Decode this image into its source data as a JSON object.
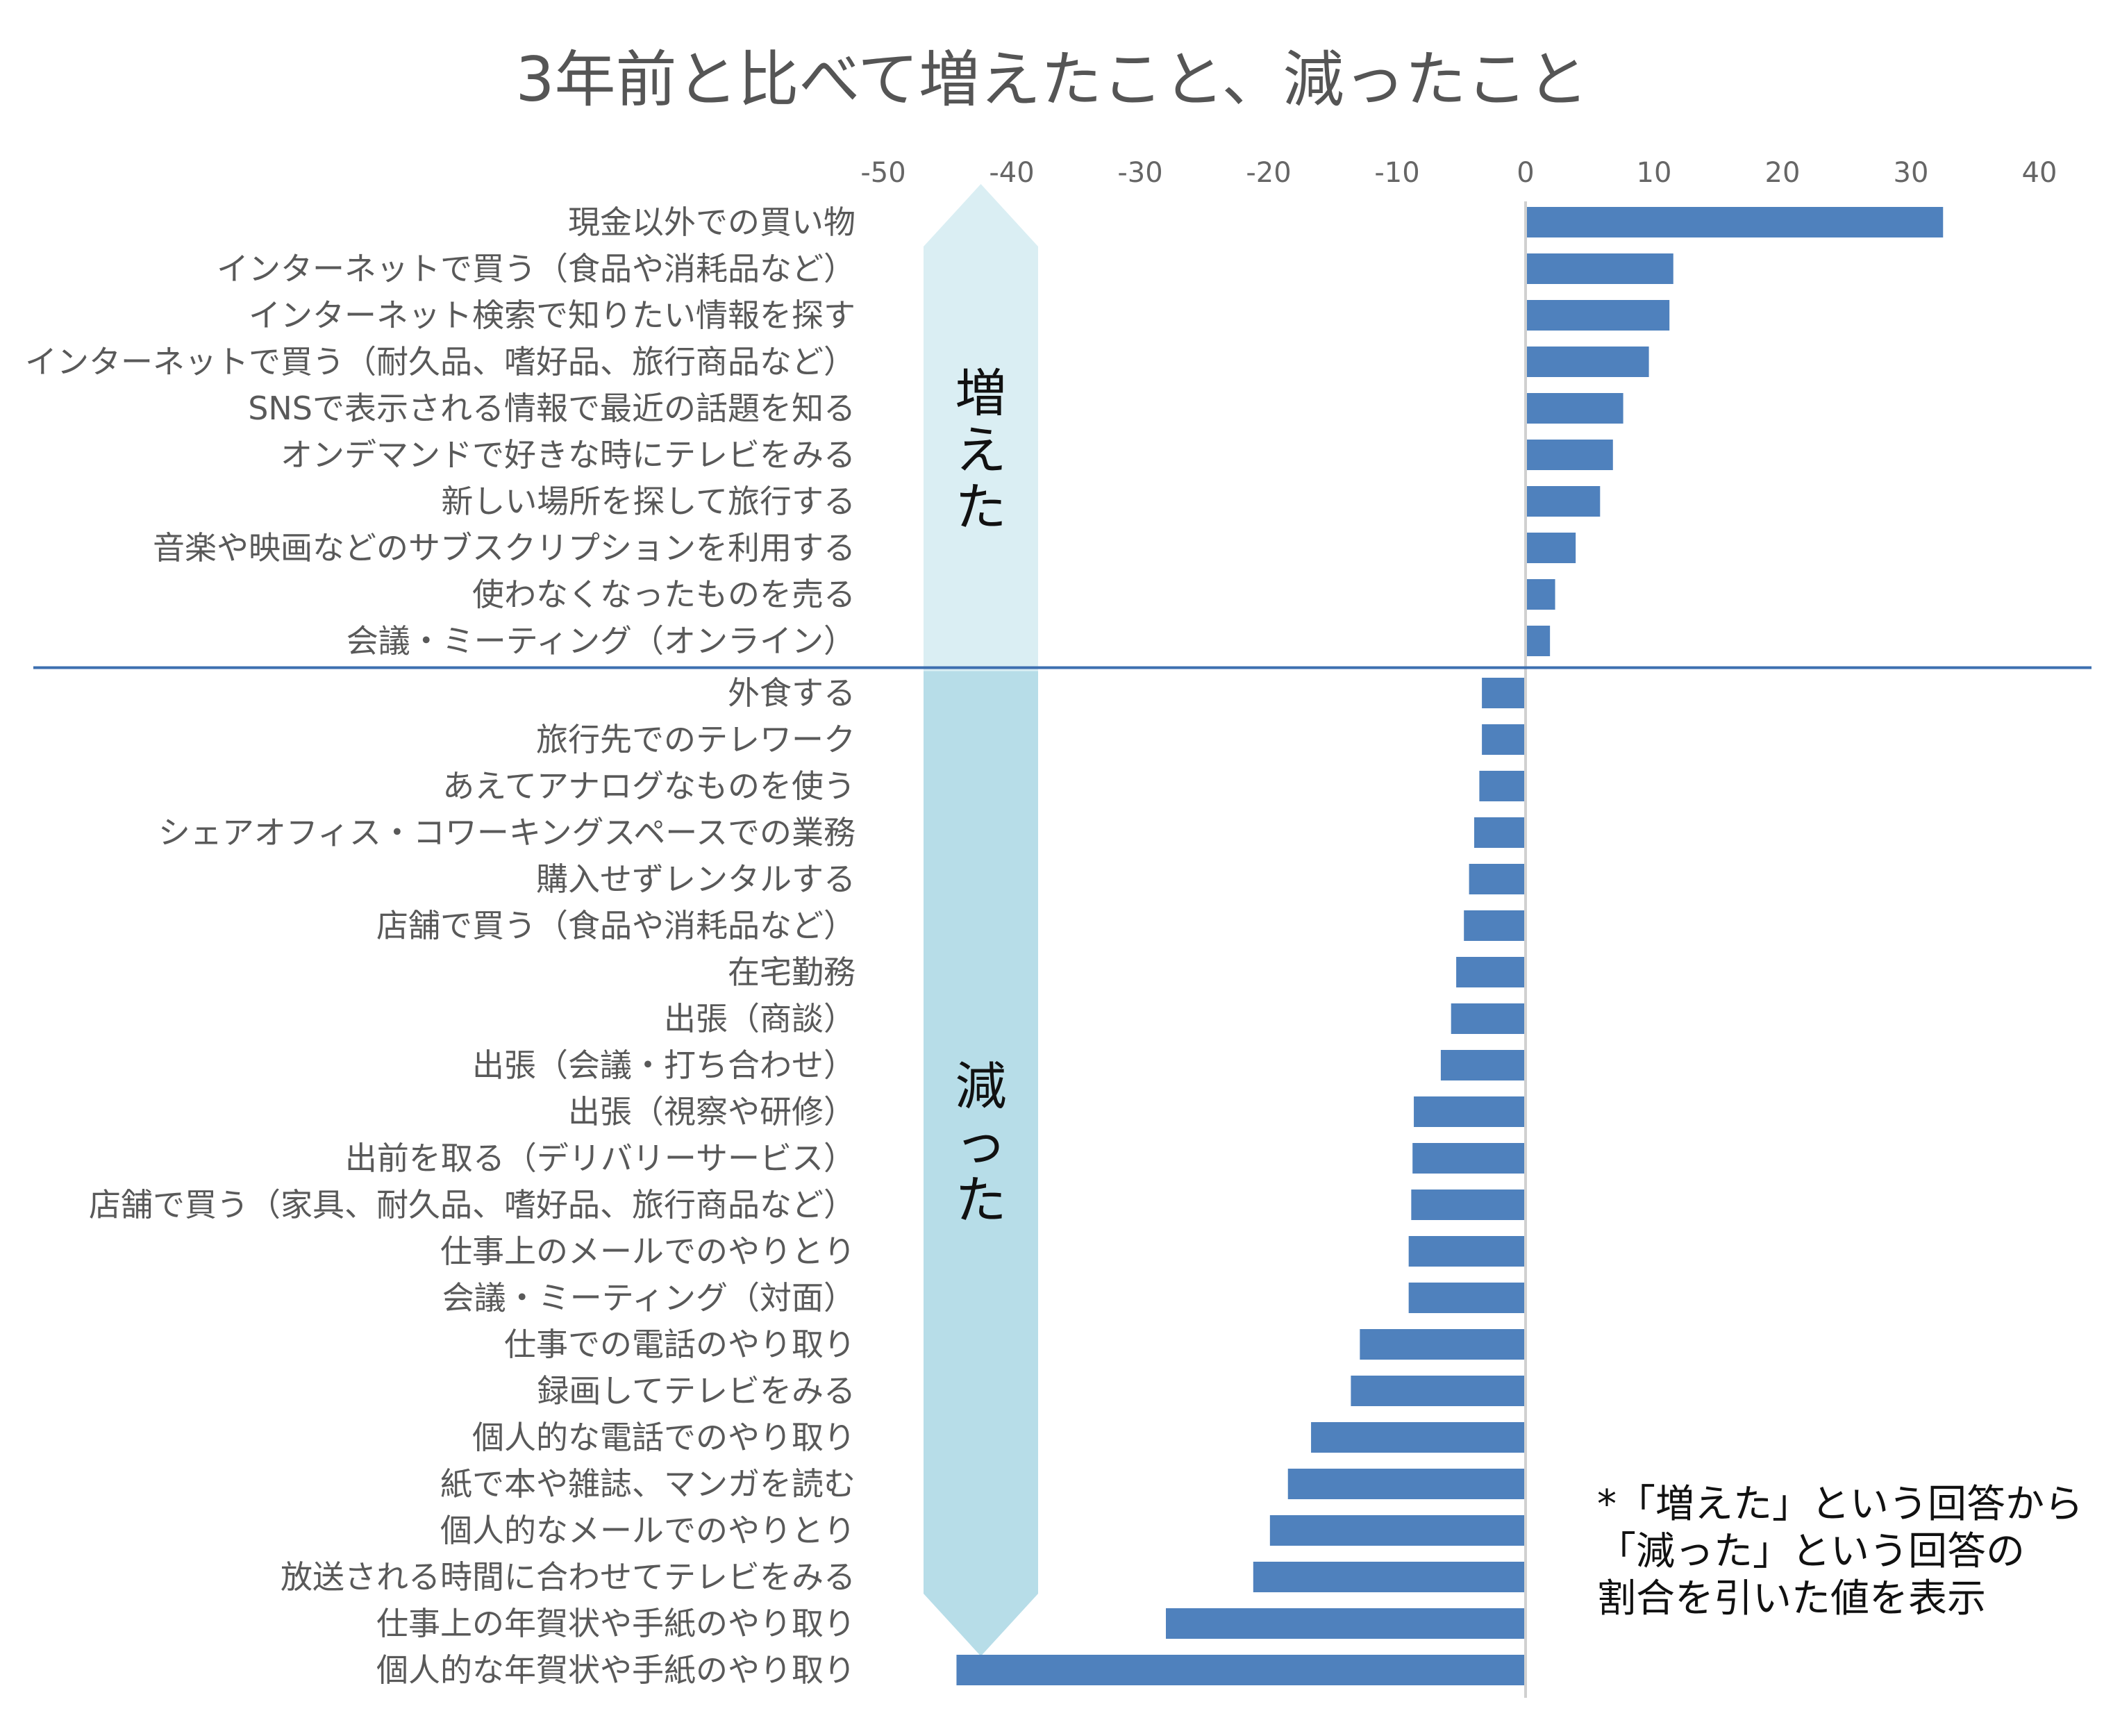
{
  "chart_data": {
    "type": "bar",
    "orientation": "horizontal",
    "title": "3年前と比べて増えたこと、減ったこと",
    "xlim": [
      -50,
      40
    ],
    "x_ticks": [
      -50,
      -40,
      -30,
      -20,
      -10,
      0,
      10,
      20,
      30,
      40
    ],
    "xlabel": "",
    "ylabel": "",
    "grid": false,
    "bar_color": "#4f81bd",
    "divider_color": "#3d6fb0",
    "arrow_color_up": "#daeef3",
    "arrow_color_down": "#b7dde8",
    "increased_label": "増えた",
    "decreased_label": "減った",
    "increased": [
      {
        "label": "現金以外での買い物",
        "value": 32.5
      },
      {
        "label": "インターネットで買う（食品や消耗品など）",
        "value": 11.5
      },
      {
        "label": "インターネット検索で知りたい情報を探す",
        "value": 11.2
      },
      {
        "label": "インターネットで買う（耐久品、嗜好品、旅行商品など）",
        "value": 9.6
      },
      {
        "label": "SNSで表示される情報で最近の話題を知る",
        "value": 7.6
      },
      {
        "label": "オンデマンドで好きな時にテレビをみる",
        "value": 6.8
      },
      {
        "label": "新しい場所を探して旅行する",
        "value": 5.8
      },
      {
        "label": "音楽や映画などのサブスクリプションを利用する",
        "value": 3.9
      },
      {
        "label": "使わなくなったものを売る",
        "value": 2.3
      },
      {
        "label": "会議・ミーティング（オンライン）",
        "value": 1.9
      }
    ],
    "decreased": [
      {
        "label": "外食する",
        "value": -3.4
      },
      {
        "label": "旅行先でのテレワーク",
        "value": -3.4
      },
      {
        "label": "あえてアナログなものを使う",
        "value": -3.6
      },
      {
        "label": "シェアオフィス・コワーキングスペースでの業務",
        "value": -4.0
      },
      {
        "label": "購入せずレンタルする",
        "value": -4.4
      },
      {
        "label": "店舗で買う（食品や消耗品など）",
        "value": -4.8
      },
      {
        "label": "在宅勤務",
        "value": -5.4
      },
      {
        "label": "出張（商談）",
        "value": -5.8
      },
      {
        "label": "出張（会議・打ち合わせ）",
        "value": -6.6
      },
      {
        "label": "出張（視察や研修）",
        "value": -8.7
      },
      {
        "label": "出前を取る（デリバリーサービス）",
        "value": -8.8
      },
      {
        "label": "店舗で買う（家具、耐久品、嗜好品、旅行商品など）",
        "value": -8.9
      },
      {
        "label": "仕事上のメールでのやりとり",
        "value": -9.1
      },
      {
        "label": "会議・ミーティング（対面）",
        "value": -9.1
      },
      {
        "label": "仕事での電話のやり取り",
        "value": -12.9
      },
      {
        "label": "録画してテレビをみる",
        "value": -13.6
      },
      {
        "label": "個人的な電話でのやり取り",
        "value": -16.7
      },
      {
        "label": "紙で本や雑誌、マンガを読む",
        "value": -18.5
      },
      {
        "label": "個人的なメールでのやりとり",
        "value": -19.9
      },
      {
        "label": "放送される時間に合わせてテレビをみる",
        "value": -21.2
      },
      {
        "label": "仕事上の年賀状や手紙のやり取り",
        "value": -28.0
      },
      {
        "label": "個人的な年賀状や手紙のやり取り",
        "value": -44.3
      }
    ],
    "note_lines": [
      "*「増えた」という回答から",
      "「減った」という回答の",
      "割合を引いた値を表示"
    ]
  }
}
